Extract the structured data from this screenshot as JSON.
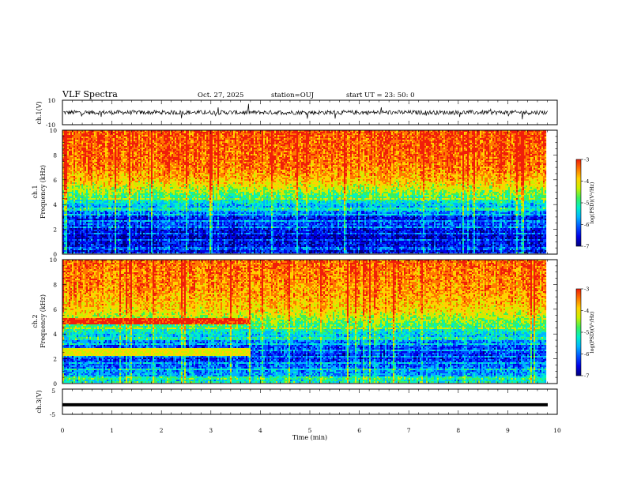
{
  "header": {
    "title": "VLF Spectra",
    "date": "Oct. 27, 2025",
    "station": "station=OUJ",
    "start": "start  UT  =   23: 50: 0"
  },
  "colors": {
    "spectrogram_palette": [
      "#00007a",
      "#0000e6",
      "#0050ff",
      "#00b4ff",
      "#00f0c8",
      "#3cf05a",
      "#c8f000",
      "#ffd200",
      "#ff7800",
      "#f01e0a"
    ],
    "trace": "#000000",
    "axis": "#000000"
  },
  "chart_data": [
    {
      "type": "line",
      "name": "ch1-waveform",
      "ylabel": "ch.1(V)",
      "ylim": [
        -10,
        10
      ],
      "ytick_labels": [
        "10",
        "-10"
      ],
      "xlim": [
        0,
        10
      ],
      "baseline_v": 0,
      "noise_amplitude_v": 2.5
    },
    {
      "type": "heatmap",
      "name": "ch1-spectrogram",
      "ylabel": "ch.1",
      "ylabel2": "Frequency  (kHz)",
      "xlim": [
        0,
        9.8
      ],
      "ylim": [
        0,
        10
      ],
      "yticks": [
        0,
        2,
        4,
        6,
        8,
        10
      ],
      "ytick_labels": [
        "0",
        "2",
        "4",
        "6",
        "8",
        "10"
      ],
      "colorbar": {
        "label": "log(PSD)(V²/Hz)",
        "range": [
          -7,
          -3
        ],
        "ticks": [
          "-3",
          "-4",
          "-5",
          "-6",
          "-7"
        ]
      },
      "level_profile_khz": [
        [
          0,
          -6.2
        ],
        [
          0.3,
          -6.5
        ],
        [
          0.8,
          -6.3
        ],
        [
          1.2,
          -6.6
        ],
        [
          1.8,
          -6.4
        ],
        [
          2.4,
          -6.0
        ],
        [
          2.8,
          -6.3
        ],
        [
          3.3,
          -5.8
        ],
        [
          3.9,
          -5.5
        ],
        [
          4.3,
          -5.1
        ],
        [
          5.2,
          -4.4
        ],
        [
          6,
          -3.9
        ],
        [
          7,
          -3.6
        ],
        [
          8,
          -3.5
        ],
        [
          10,
          -3.4
        ]
      ]
    },
    {
      "type": "heatmap",
      "name": "ch2-spectrogram",
      "ylabel": "ch.2",
      "ylabel2": "Frequency  (kHz)",
      "xlim": [
        0,
        9.8
      ],
      "ylim": [
        0,
        10
      ],
      "yticks": [
        0,
        2,
        4,
        6,
        8,
        10
      ],
      "ytick_labels": [
        "0",
        "2",
        "4",
        "6",
        "8",
        "10"
      ],
      "colorbar": {
        "label": "log(PSD)(V²/Hz)",
        "range": [
          -7,
          -3
        ],
        "ticks": [
          "-3",
          "-4",
          "-5",
          "-6",
          "-7"
        ]
      },
      "level_profile_khz": [
        [
          0,
          -5.0
        ],
        [
          0.5,
          -5.6
        ],
        [
          1.2,
          -5.8
        ],
        [
          2.0,
          -6.2
        ],
        [
          3.0,
          -6.0
        ],
        [
          4.0,
          -5.3
        ],
        [
          5.0,
          -4.6
        ],
        [
          6.0,
          -4.0
        ],
        [
          7.5,
          -3.7
        ],
        [
          10,
          -3.5
        ]
      ],
      "bands_before_min": 3.8,
      "bands_khz": [
        [
          2.2,
          2.8,
          -4.2
        ],
        [
          4.8,
          5.2,
          -3.3
        ]
      ]
    },
    {
      "type": "line",
      "name": "ch3-signal",
      "ylabel": "ch.3(V)",
      "ylim": [
        -5,
        5
      ],
      "ytick_labels": [
        "5",
        "-5"
      ],
      "xlim": [
        0,
        10
      ],
      "constant_value_v": -1.2
    }
  ],
  "xaxis": {
    "label": "Time  (min)",
    "ticks": [
      0,
      1,
      2,
      3,
      4,
      5,
      6,
      7,
      8,
      9,
      10
    ],
    "tick_labels": [
      "0",
      "1",
      "2",
      "3",
      "4",
      "5",
      "6",
      "7",
      "8",
      "9",
      "10"
    ]
  }
}
